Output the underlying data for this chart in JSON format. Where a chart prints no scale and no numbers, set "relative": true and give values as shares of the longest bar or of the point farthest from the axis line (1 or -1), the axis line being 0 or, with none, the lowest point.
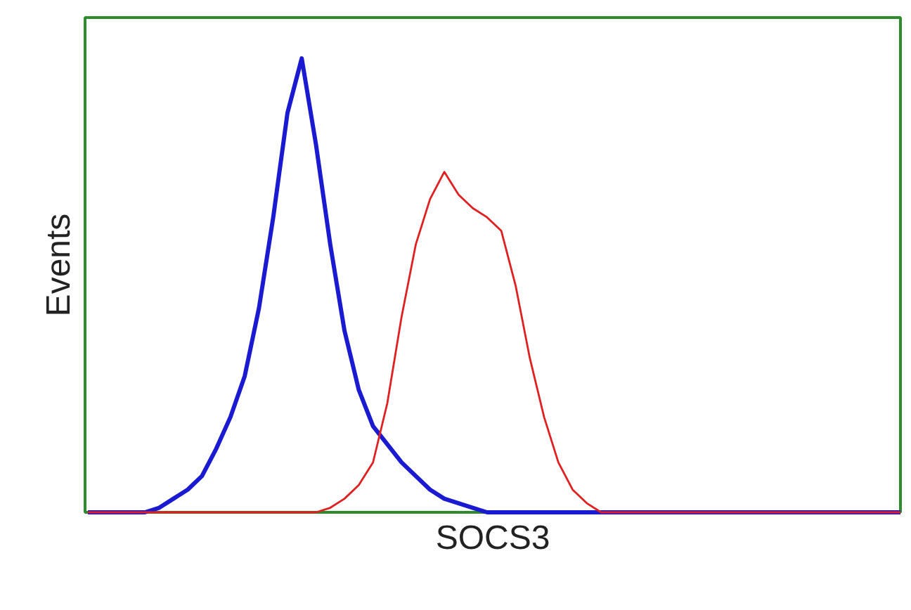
{
  "chart_data": {
    "type": "line",
    "xlabel": "SOCS3",
    "ylabel": "Events",
    "relative": true,
    "categories": [
      null,
      null,
      null,
      null,
      null,
      null,
      null,
      null,
      null,
      null,
      null,
      null,
      null,
      null,
      null,
      null,
      null,
      null,
      null,
      null,
      null,
      null,
      null,
      null,
      null,
      null,
      null,
      null,
      null,
      null,
      null,
      null,
      null,
      null,
      null,
      null,
      null,
      null,
      null,
      null,
      null,
      null,
      null,
      null,
      null,
      null,
      null,
      null,
      null,
      null,
      null,
      null,
      null,
      null,
      null,
      null,
      null,
      null
    ],
    "series": [
      {
        "color": "#1a1ad0",
        "values": [
          0,
          0,
          0,
          0,
          0,
          0.01,
          0.03,
          0.05,
          0.08,
          0.14,
          0.21,
          0.3,
          0.45,
          0.65,
          0.88,
          1.0,
          0.81,
          0.59,
          0.4,
          0.27,
          0.19,
          0.15,
          0.11,
          0.08,
          0.05,
          0.03,
          0.02,
          0.01,
          0,
          0,
          0,
          0,
          0,
          0,
          0,
          0,
          0,
          0,
          0,
          0,
          0,
          0,
          0,
          0,
          0,
          0,
          0,
          0,
          0,
          0,
          0,
          0,
          0,
          0,
          0,
          0,
          0,
          0
        ]
      },
      {
        "color": "#e02020",
        "values": [
          0,
          0,
          0,
          0,
          0,
          0,
          0,
          0,
          0,
          0,
          0,
          0,
          0,
          0,
          0,
          0,
          0,
          0.01,
          0.03,
          0.06,
          0.11,
          0.24,
          0.43,
          0.59,
          0.69,
          0.75,
          0.7,
          0.67,
          0.65,
          0.62,
          0.5,
          0.34,
          0.21,
          0.11,
          0.05,
          0.02,
          0,
          0,
          0,
          0,
          0,
          0,
          0,
          0,
          0,
          0,
          0,
          0,
          0,
          0,
          0,
          0,
          0,
          0,
          0,
          0,
          0,
          0
        ]
      }
    ]
  }
}
